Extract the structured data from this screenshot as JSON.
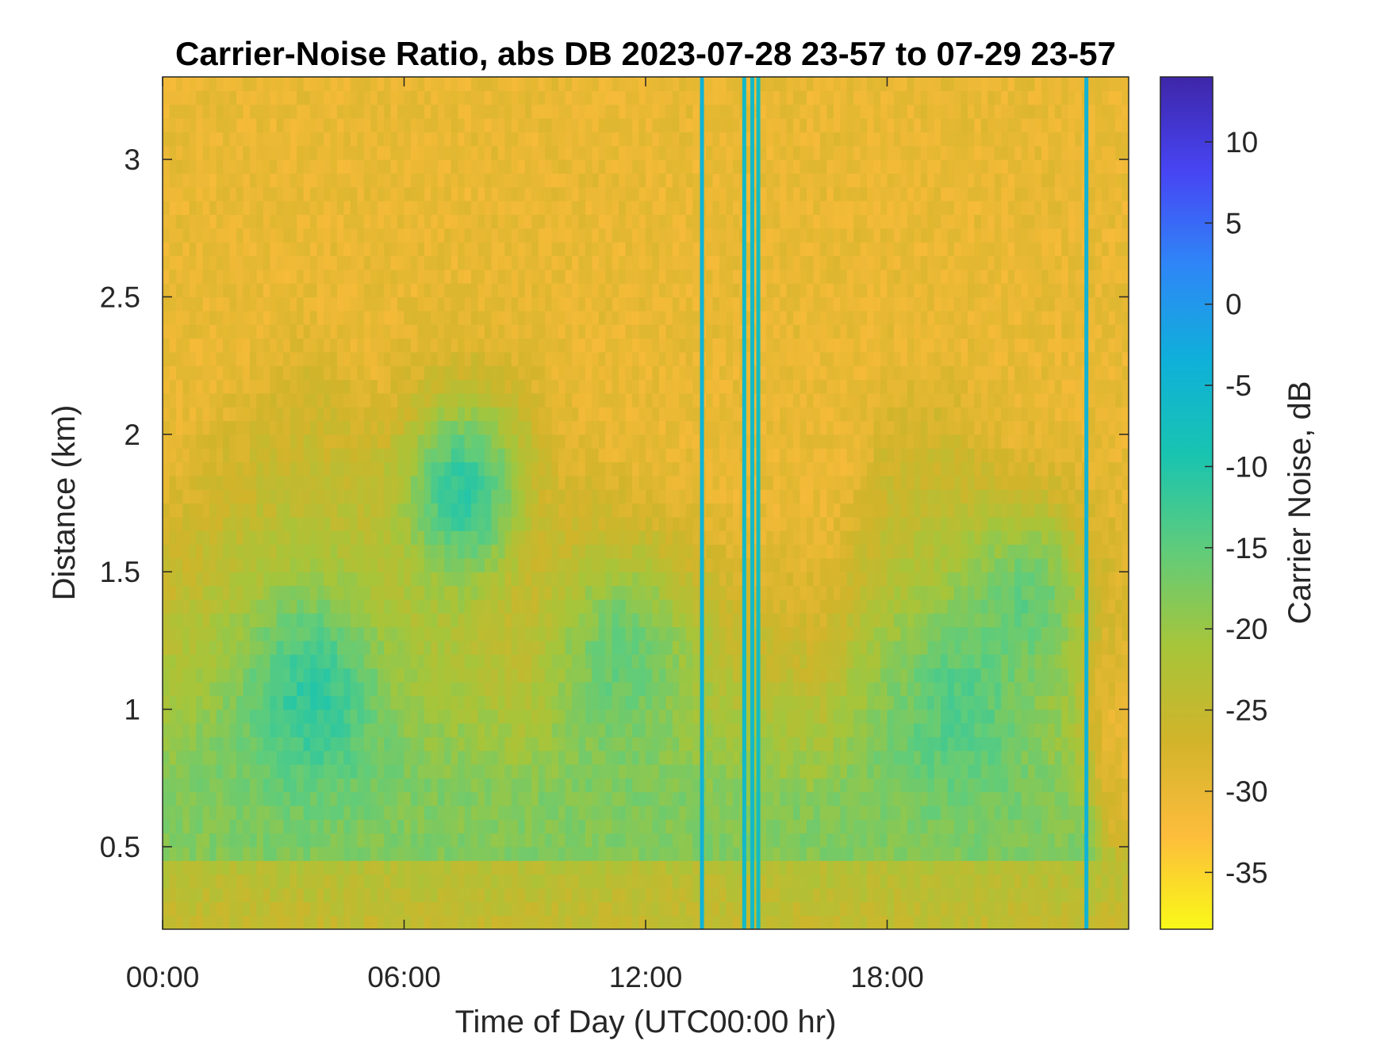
{
  "chart_data": {
    "type": "heatmap",
    "title": "Carrier-Noise Ratio, abs DB 2023-07-28 23-57 to 07-29 23-57",
    "xlabel": "Time of Day (UTC00:00 hr)",
    "ylabel": "Distance (km)",
    "colorbar_label": "Carrier Noise, dB",
    "xlim": [
      0,
      24
    ],
    "ylim": [
      0.2,
      3.3
    ],
    "clim": [
      -38.5,
      14
    ],
    "x_ticks": [
      {
        "value": 0,
        "label": "00:00"
      },
      {
        "value": 6,
        "label": "06:00"
      },
      {
        "value": 12,
        "label": "12:00"
      },
      {
        "value": 18,
        "label": "18:00"
      }
    ],
    "y_ticks": [
      {
        "value": 0.5,
        "label": "0.5"
      },
      {
        "value": 1,
        "label": "1"
      },
      {
        "value": 1.5,
        "label": "1.5"
      },
      {
        "value": 2,
        "label": "2"
      },
      {
        "value": 2.5,
        "label": "2.5"
      },
      {
        "value": 3,
        "label": "3"
      }
    ],
    "colorbar_ticks": [
      {
        "value": 10,
        "label": "10"
      },
      {
        "value": 5,
        "label": "5"
      },
      {
        "value": 0,
        "label": "0"
      },
      {
        "value": -5,
        "label": "-5"
      },
      {
        "value": -10,
        "label": "-10"
      },
      {
        "value": -15,
        "label": "-15"
      },
      {
        "value": -20,
        "label": "-20"
      },
      {
        "value": -25,
        "label": "-25"
      },
      {
        "value": -30,
        "label": "-30"
      },
      {
        "value": -35,
        "label": "-35"
      }
    ],
    "colormap": "parula",
    "colormap_stops": [
      "#3e26a8",
      "#4745f4",
      "#2e87f7",
      "#0fb0d9",
      "#19c4b0",
      "#60cc7a",
      "#a6c53a",
      "#d1b42a",
      "#fdbc3c",
      "#f9f918"
    ],
    "background_level_db": -30,
    "boundary_layer": {
      "time_h": [
        0,
        2,
        3.5,
        4.5,
        6,
        7.5,
        9,
        10.5,
        12,
        13.5,
        15,
        16.5,
        18,
        19.5,
        21,
        22.5,
        23.4,
        24
      ],
      "top_km": [
        1.6,
        1.95,
        2.15,
        2.05,
        1.7,
        1.6,
        1.35,
        1.65,
        1.55,
        1.45,
        1.35,
        1.3,
        1.95,
        2.0,
        1.65,
        1.45,
        0.6,
        0.5
      ]
    },
    "high_snr_cores": [
      {
        "time_h": 3.7,
        "distance_km": 1.05,
        "db": -10
      },
      {
        "time_h": 7.5,
        "distance_km": 1.8,
        "db": -8
      },
      {
        "time_h": 11.5,
        "distance_km": 1.2,
        "db": -14
      },
      {
        "time_h": 19.8,
        "distance_km": 1.0,
        "db": -13
      },
      {
        "time_h": 21.5,
        "distance_km": 1.4,
        "db": -14
      }
    ],
    "vertical_streaks": [
      {
        "time_h": 13.4,
        "db": -4
      },
      {
        "time_h": 14.45,
        "db": -6
      },
      {
        "time_h": 14.65,
        "db": -6
      },
      {
        "time_h": 14.8,
        "db": -7
      },
      {
        "time_h": 22.95,
        "db": -4
      }
    ],
    "grid": false
  }
}
